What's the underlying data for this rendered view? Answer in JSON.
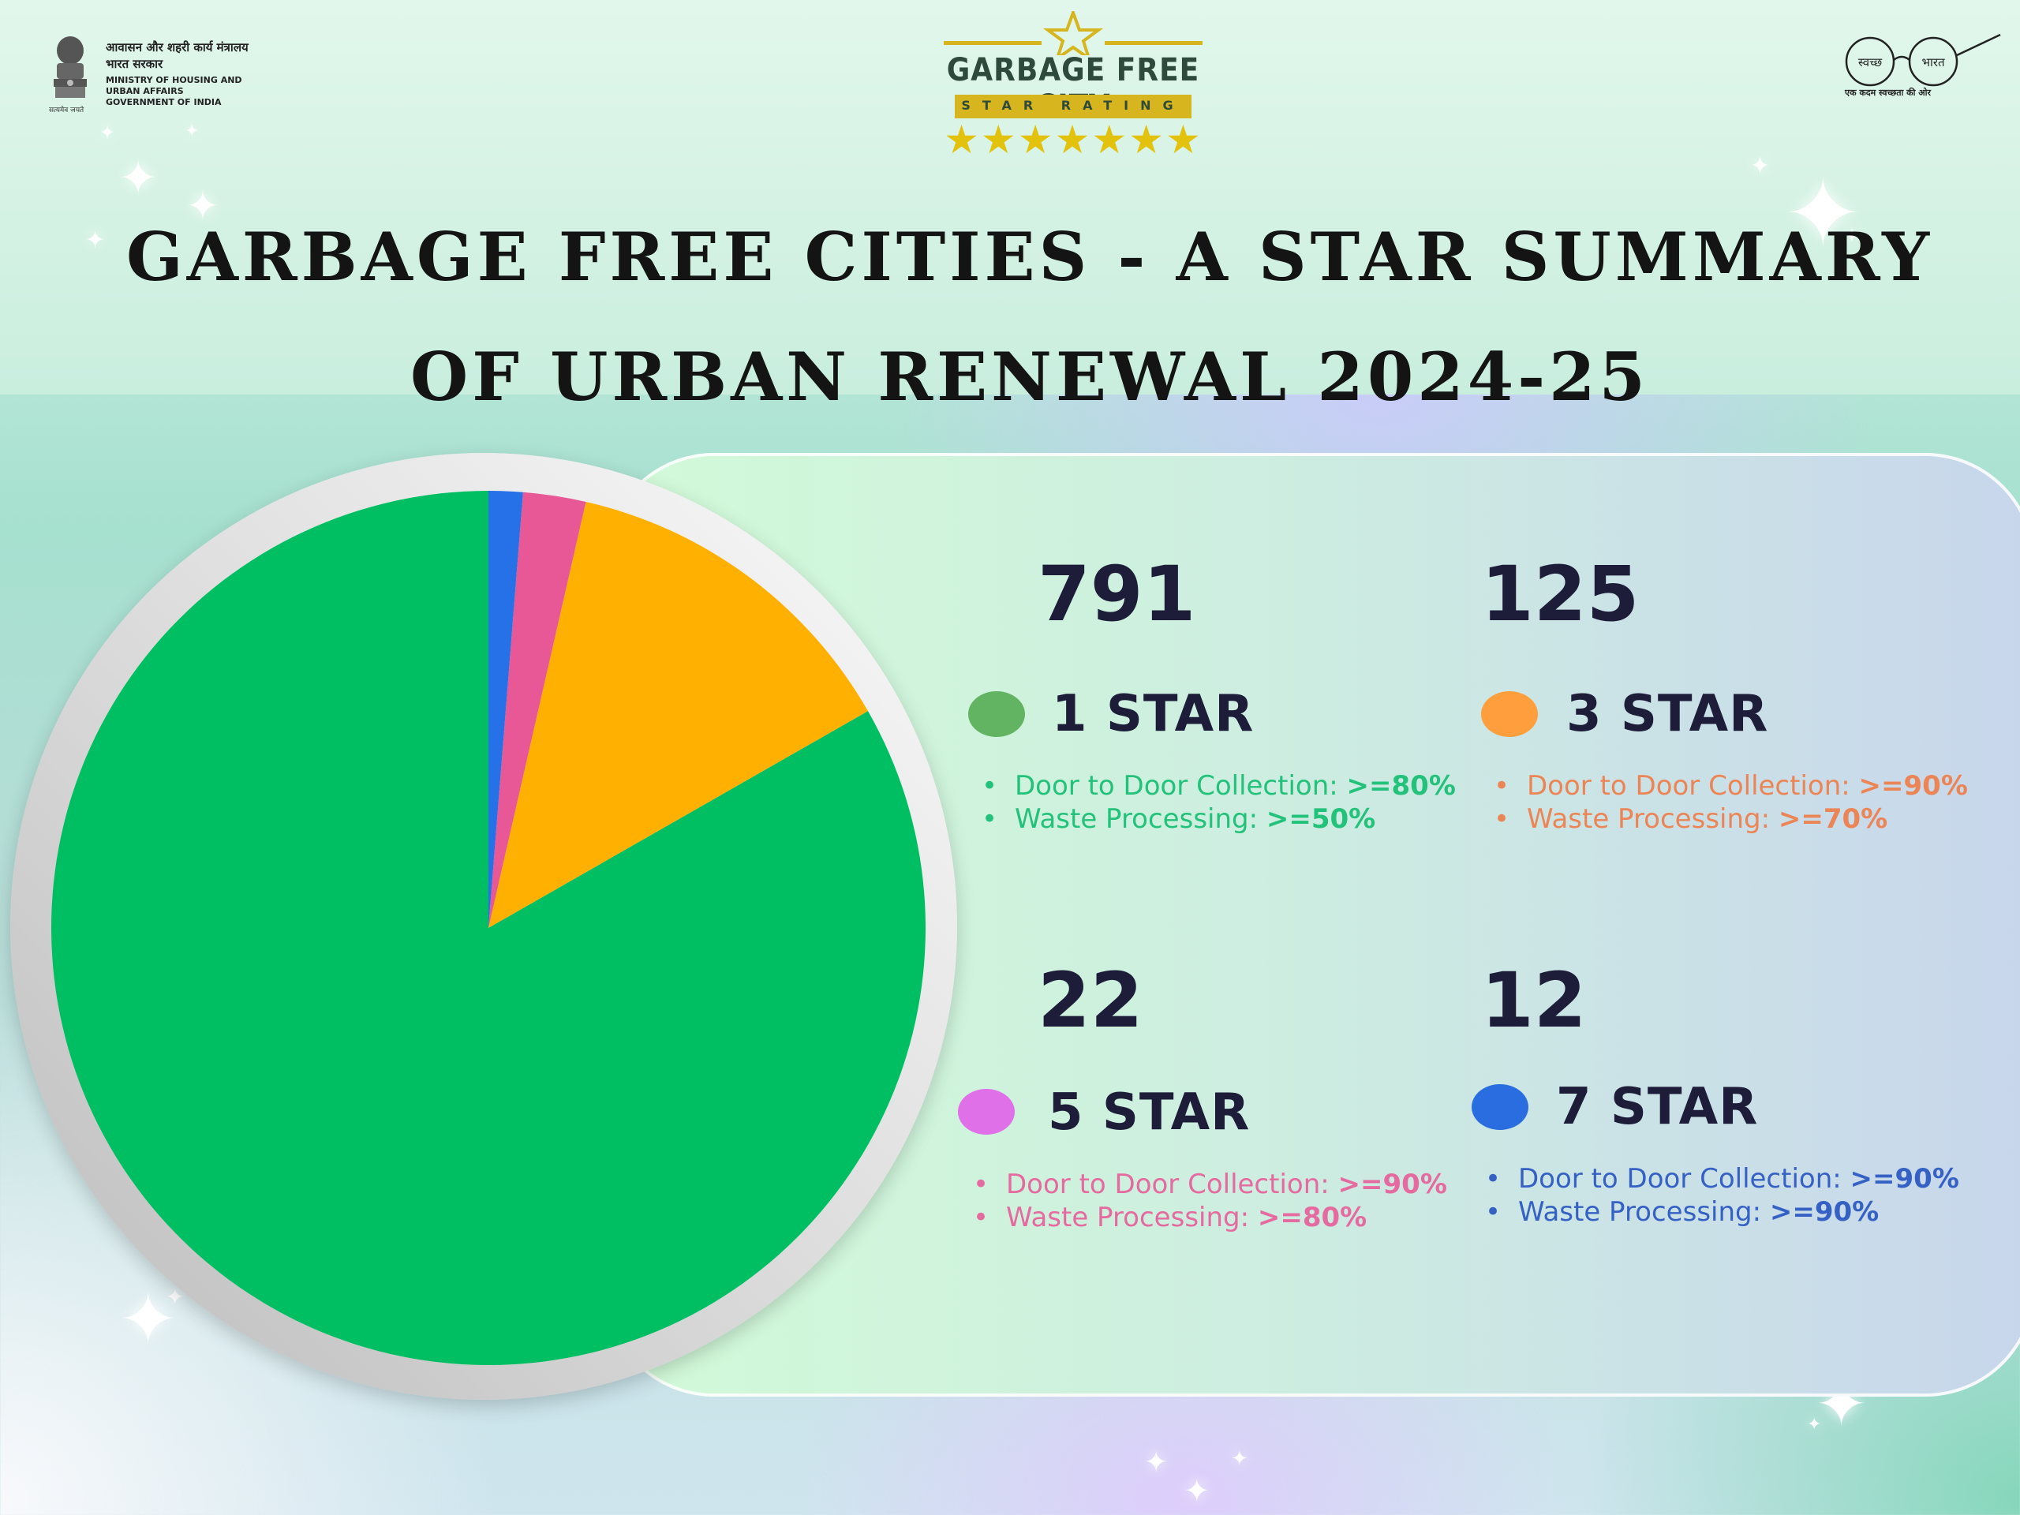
{
  "header": {
    "ministry": {
      "hindi_line1": "आवासन और शहरी कार्य मंत्रालय",
      "hindi_line2": "भारत सरकार",
      "english_lines": [
        "MINISTRY OF HOUSING AND",
        "URBAN AFFAIRS",
        "GOVERNMENT OF INDIA"
      ],
      "motto": "सत्यमेव जयते"
    },
    "logo": {
      "name": "GARBAGE FREE CITY",
      "subtitle": "STAR RATING",
      "stars": "★★★★★★★"
    },
    "swachh": {
      "left_word": "स्वच्छ",
      "right_word": "भारत",
      "tagline": "एक कदम स्वच्छता की ओर"
    }
  },
  "title_lines": [
    "GARBAGE FREE CITIES - A STAR SUMMARY",
    "OF URBAN RENEWAL 2024-25"
  ],
  "chart_data": {
    "type": "pie",
    "categories": [
      "1 STAR",
      "3 STAR",
      "5 STAR",
      "7 STAR"
    ],
    "values": [
      791,
      125,
      22,
      12
    ],
    "colors": [
      "#00bf63",
      "#ffb000",
      "#e85896",
      "#2671e8"
    ],
    "legend_colors": [
      "#62b462",
      "#ff9e3d",
      "#e070e8",
      "#2a6de0"
    ],
    "criteria_colors": [
      "#22c27a",
      "#ec8555",
      "#e56aa0",
      "#3561c4"
    ],
    "criteria": [
      [
        {
          "label": "Door to Door Collection: ",
          "value": ">=80%"
        },
        {
          "label": "Waste Processing: ",
          "value": ">=50%"
        }
      ],
      [
        {
          "label": "Door to Door Collection: ",
          "value": ">=90%"
        },
        {
          "label": "Waste Processing: ",
          "value": ">=70%"
        }
      ],
      [
        {
          "label": "Door to Door Collection: ",
          "value": ">=90%"
        },
        {
          "label": "Waste Processing: ",
          "value": ">=80%"
        }
      ],
      [
        {
          "label": "Door to Door Collection: ",
          "value": ">=90%"
        },
        {
          "label": "Waste Processing: ",
          "value": ">=90%"
        }
      ]
    ],
    "legend": "right"
  }
}
